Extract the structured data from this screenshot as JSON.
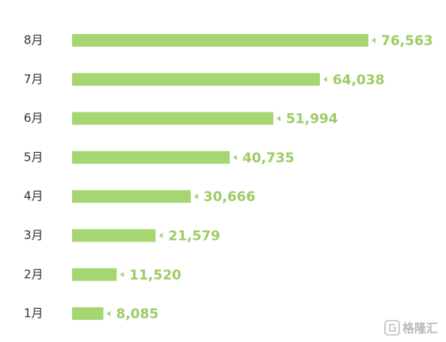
{
  "chart_data": {
    "type": "bar",
    "orientation": "horizontal",
    "categories": [
      "8月",
      "7月",
      "6月",
      "5月",
      "4月",
      "3月",
      "2月",
      "1月"
    ],
    "values": [
      76563,
      64038,
      51994,
      40735,
      30666,
      21579,
      11520,
      8085
    ],
    "value_labels": [
      "76,563",
      "64,038",
      "51,994",
      "40,735",
      "30,666",
      "21,579",
      "11,520",
      "8,085"
    ],
    "color": "#a6d672",
    "watermark": "格隆汇"
  }
}
